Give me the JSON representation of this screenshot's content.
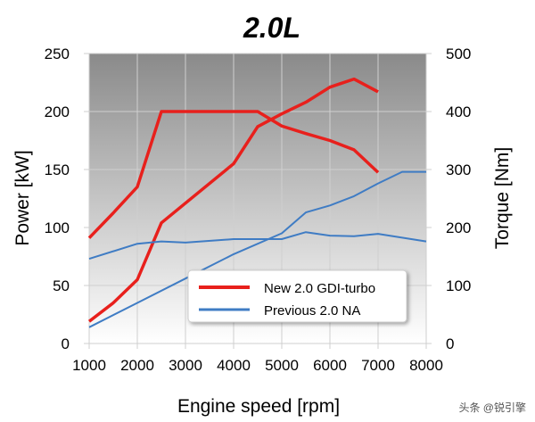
{
  "chart_data": {
    "type": "line",
    "title": "2.0L",
    "xlabel": "Engine speed [rpm]",
    "ylabel": "Power [kW]",
    "y2label": "Torque [Nm]",
    "xlim": [
      1000,
      8000
    ],
    "ylim": [
      0,
      250
    ],
    "y2lim": [
      0,
      500
    ],
    "xticks": [
      1000,
      2000,
      3000,
      4000,
      5000,
      6000,
      7000,
      8000
    ],
    "yticks": [
      0,
      50,
      100,
      150,
      200,
      250
    ],
    "y2ticks": [
      0,
      100,
      200,
      300,
      400,
      500
    ],
    "grid": true,
    "legend_position": "bottom-right",
    "series": [
      {
        "name": "New 2.0 GDI-turbo",
        "quantity": "power",
        "axis": "left",
        "color": "#e8201c",
        "x": [
          1000,
          1500,
          2000,
          2500,
          3000,
          4000,
          4500,
          5000,
          5500,
          6000,
          6500,
          7000
        ],
        "y": [
          19,
          35,
          55,
          104,
          121,
          155,
          187,
          198,
          208,
          221,
          228,
          217
        ]
      },
      {
        "name": "New 2.0 GDI-turbo",
        "quantity": "torque",
        "axis": "right",
        "color": "#e8201c",
        "x": [
          1000,
          1500,
          2000,
          2500,
          3000,
          4000,
          4500,
          5000,
          5500,
          6000,
          6500,
          7000
        ],
        "y": [
          182,
          225,
          270,
          400,
          400,
          400,
          400,
          375,
          362,
          350,
          334,
          295
        ]
      },
      {
        "name": "Previous 2.0 NA",
        "quantity": "power",
        "axis": "left",
        "color": "#3f7cc4",
        "x": [
          1000,
          2000,
          3000,
          4000,
          5000,
          5500,
          6000,
          6500,
          7000,
          7500,
          8000
        ],
        "y": [
          14,
          35,
          56,
          77,
          95,
          113,
          119,
          127,
          138,
          148,
          148
        ]
      },
      {
        "name": "Previous 2.0 NA",
        "quantity": "torque",
        "axis": "right",
        "color": "#3f7cc4",
        "x": [
          1000,
          2000,
          2500,
          3000,
          4000,
          5000,
          5500,
          6000,
          6500,
          7000,
          8000
        ],
        "y": [
          146,
          172,
          176,
          174,
          180,
          180,
          192,
          186,
          185,
          189,
          176
        ]
      }
    ],
    "legend": [
      "New 2.0 GDI-turbo",
      "Previous 2.0 NA"
    ]
  },
  "watermark": "头条 @锐引擎"
}
